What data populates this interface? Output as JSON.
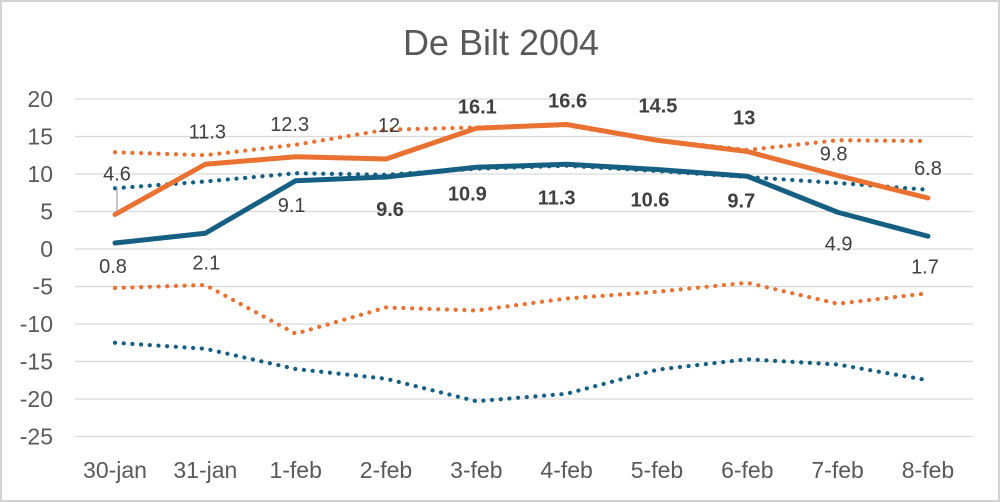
{
  "title": "De Bilt 2004",
  "colors": {
    "orange": "#E97132",
    "teal": "#156082",
    "grid": "#D9D9D9",
    "tick_text": "#595959",
    "label_text": "#404040",
    "leader": "#A6A6A6",
    "frame_border": "#D2D2D2"
  },
  "chart_data": {
    "type": "line",
    "title": "De Bilt 2004",
    "categories": [
      "30-jan",
      "31-jan",
      "1-feb",
      "2-feb",
      "3-feb",
      "4-feb",
      "5-feb",
      "6-feb",
      "7-feb",
      "8-feb"
    ],
    "ylim": [
      -25,
      20
    ],
    "ytick_step": 5,
    "ytick_labels": [
      "20",
      "15",
      "10",
      "5",
      "0",
      "-5",
      "-10",
      "-15",
      "-20",
      "-25"
    ],
    "grid": true,
    "legend": "none",
    "series": [
      {
        "name": "upper-dotted-orange",
        "style": "dotted",
        "color": "#E97132",
        "values": [
          12.9,
          12.5,
          13.9,
          15.9,
          16.2,
          16.5,
          14.5,
          13.2,
          14.5,
          14.4
        ],
        "data_labels": false
      },
      {
        "name": "upper-dotted-teal",
        "style": "dotted",
        "color": "#156082",
        "values": [
          8.1,
          9.0,
          10.1,
          9.9,
          10.7,
          11.1,
          10.4,
          9.6,
          8.8,
          7.9
        ],
        "data_labels": false
      },
      {
        "name": "lower-dotted-orange",
        "style": "dotted",
        "color": "#E97132",
        "values": [
          -5.2,
          -4.8,
          -11.3,
          -7.8,
          -8.2,
          -6.6,
          -5.7,
          -4.5,
          -7.3,
          -5.9
        ],
        "data_labels": false
      },
      {
        "name": "lower-dotted-teal",
        "style": "dotted",
        "color": "#156082",
        "values": [
          -12.5,
          -13.3,
          -16.0,
          -17.3,
          -20.3,
          -19.3,
          -16.1,
          -14.7,
          -15.4,
          -17.5
        ],
        "data_labels": false
      },
      {
        "name": "solid-orange-max",
        "style": "solid",
        "color": "#E97132",
        "values": [
          4.6,
          11.3,
          12.3,
          12,
          16.1,
          16.6,
          14.5,
          13,
          9.8,
          6.8
        ],
        "data_labels": true,
        "label_texts": [
          "4.6",
          "11.3",
          "12.3",
          "12",
          "16.1",
          "16.6",
          "14.5",
          "13",
          "9.8",
          "6.8"
        ],
        "label_bold": [
          false,
          false,
          false,
          false,
          true,
          true,
          true,
          true,
          false,
          false
        ]
      },
      {
        "name": "solid-teal-min",
        "style": "solid",
        "color": "#156082",
        "values": [
          0.8,
          2.1,
          9.1,
          9.6,
          10.9,
          11.3,
          10.6,
          9.7,
          4.9,
          1.7
        ],
        "data_labels": true,
        "label_texts": [
          "0.8",
          "2.1",
          "9.1",
          "9.6",
          "10.9",
          "11.3",
          "10.6",
          "9.7",
          "4.9",
          "1.7"
        ],
        "label_bold": [
          false,
          false,
          false,
          true,
          true,
          true,
          true,
          true,
          false,
          false
        ]
      }
    ],
    "annotations": {
      "leader_line_on": "solid-orange-max point 0 (4.6)"
    }
  }
}
